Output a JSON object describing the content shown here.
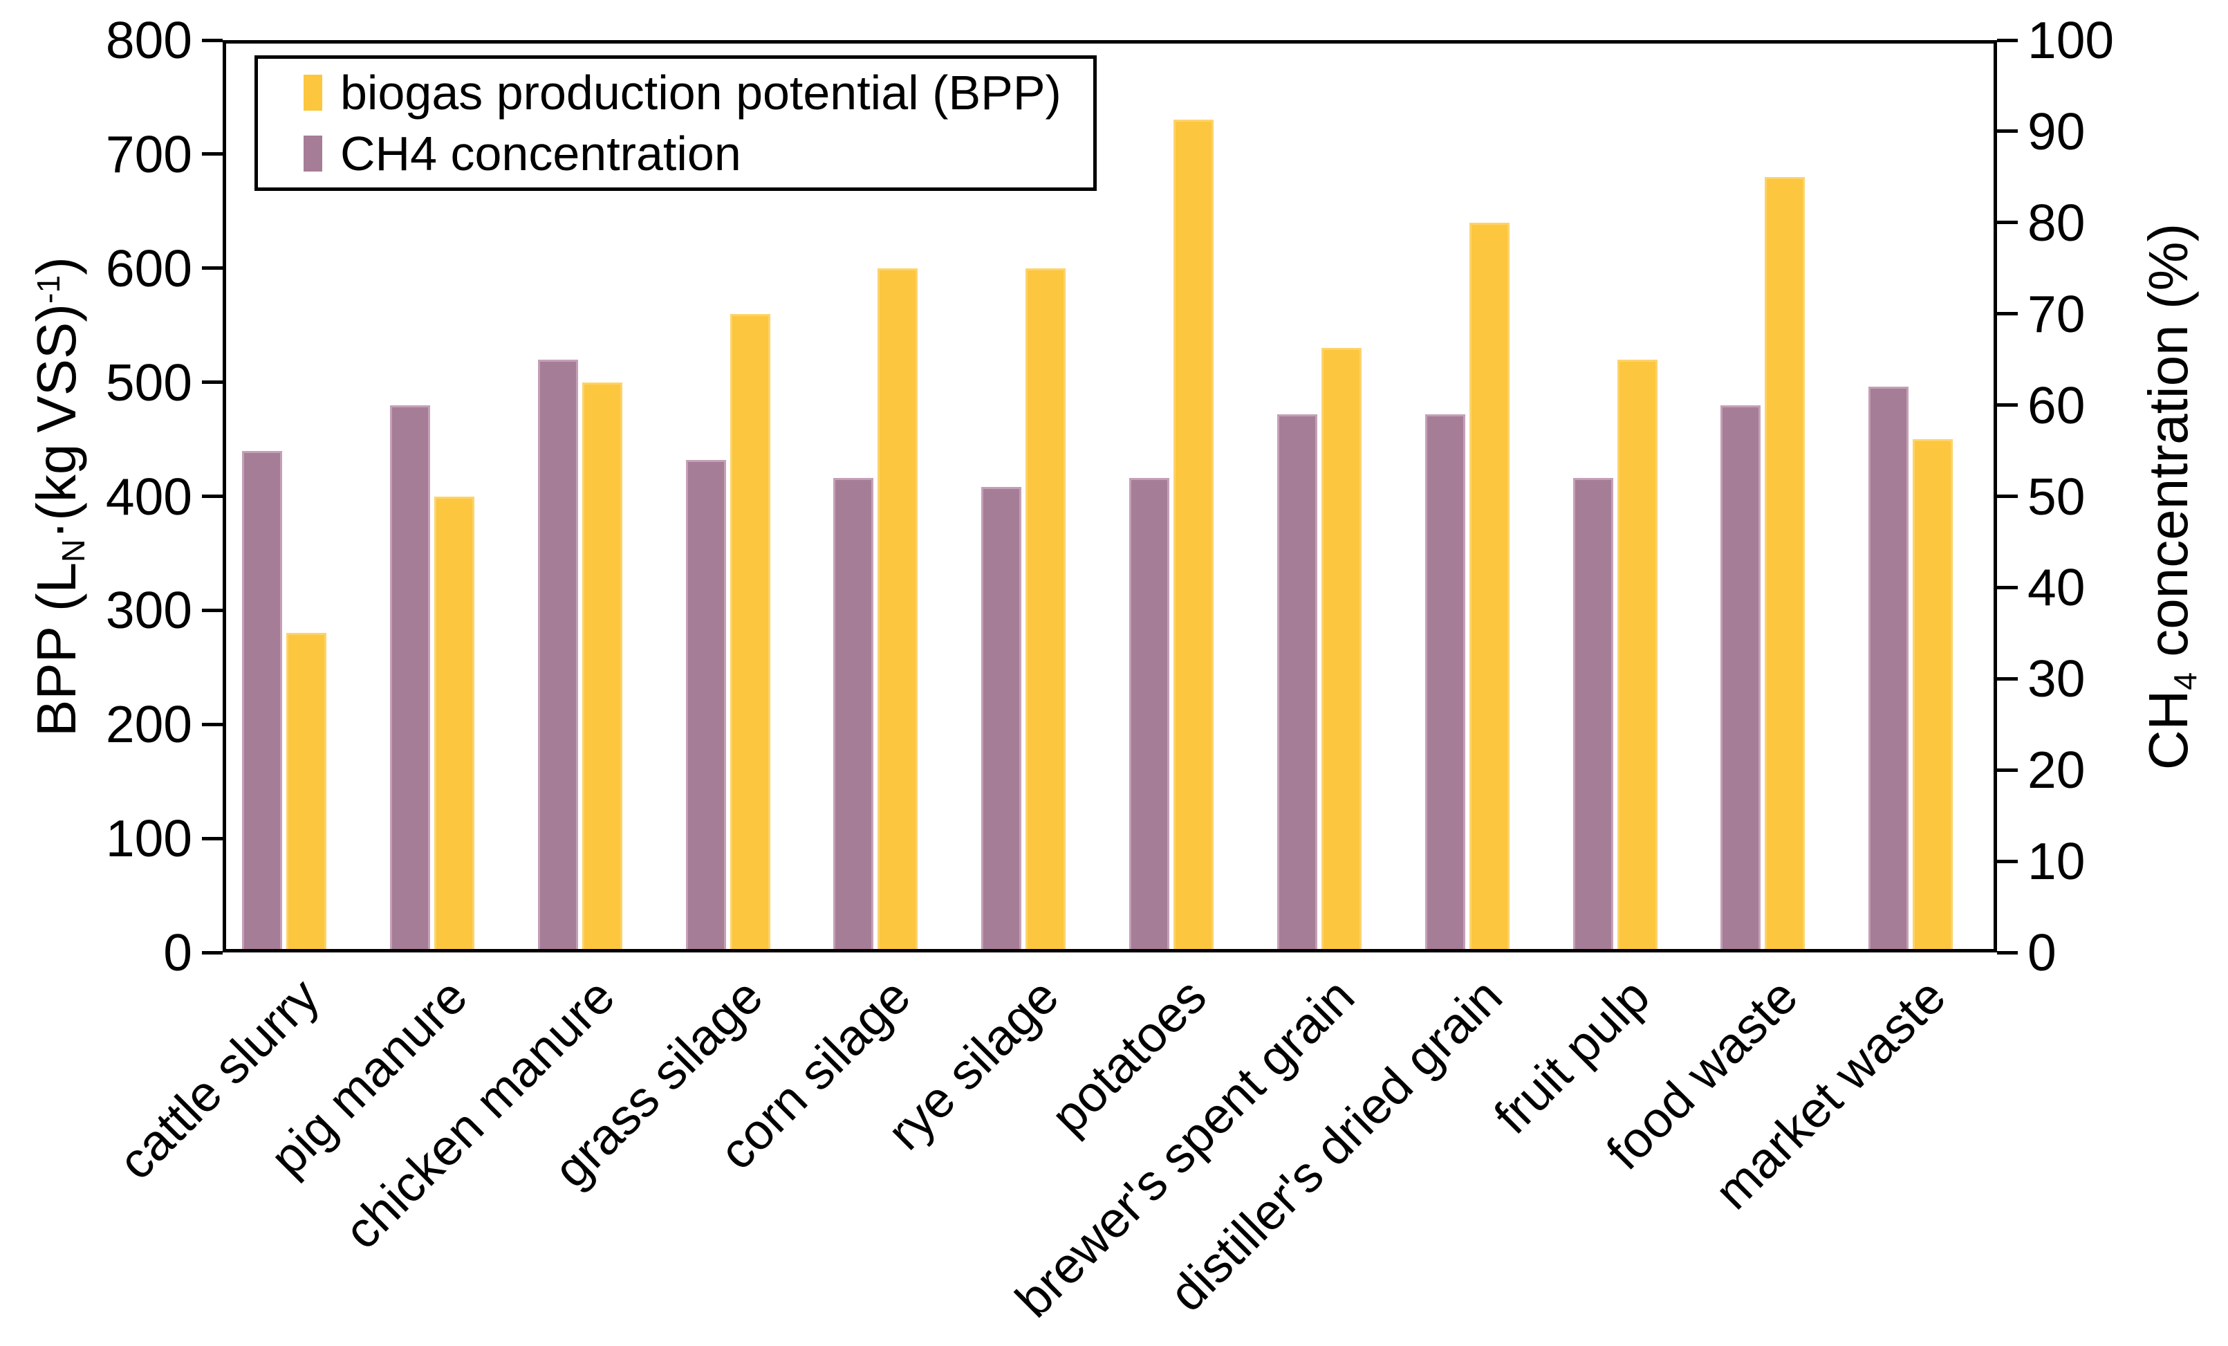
{
  "chart_data": {
    "type": "bar",
    "title": "",
    "grid": false,
    "legend_position": "top-left-inside",
    "categories": [
      "cattle slurry",
      "pig manure",
      "chicken manure",
      "grass silage",
      "corn silage",
      "rye silage",
      "potatoes",
      "brewer's spent grain",
      "distiller's dried grain",
      "fruit pulp",
      "food waste",
      "market waste"
    ],
    "series": [
      {
        "name": "biogas production potential (BPP)",
        "axis": "left",
        "color": "#fcc63e",
        "values": [
          280,
          400,
          500,
          560,
          600,
          600,
          730,
          530,
          640,
          520,
          680,
          450
        ]
      },
      {
        "name": "CH4 concentration",
        "axis": "right",
        "color": "#a67d96",
        "values": [
          55,
          60,
          65,
          54,
          52,
          51,
          52,
          59,
          59,
          52,
          60,
          62
        ]
      }
    ],
    "bar_order_in_group": [
      "CH4 concentration",
      "biogas production potential (BPP)"
    ],
    "left_axis": {
      "min": 0,
      "max": 800,
      "tick_step": 100,
      "tick_labels": [
        0,
        100,
        200,
        300,
        400,
        500,
        600,
        700,
        800
      ],
      "title_parts": [
        {
          "t": "BPP (L"
        },
        {
          "t": "N",
          "style": "sub"
        },
        {
          "t": "·(kg VSS)"
        },
        {
          "t": "-1",
          "style": "sup"
        },
        {
          "t": ")"
        }
      ]
    },
    "right_axis": {
      "min": 0,
      "max": 100,
      "tick_step": 10,
      "tick_labels": [
        0,
        10,
        20,
        30,
        40,
        50,
        60,
        70,
        80,
        90,
        100
      ],
      "title_parts": [
        {
          "t": "CH"
        },
        {
          "t": "4",
          "style": "sub"
        },
        {
          "t": " concentration (%)"
        }
      ]
    },
    "legend": {
      "items": [
        {
          "label": "biogas production potential (BPP)",
          "color": "#fcc63e"
        },
        {
          "label": "CH4 concentration",
          "color": "#a67d96"
        }
      ]
    }
  },
  "colors": {
    "bpp_fill": "#fcc63e",
    "bpp_edge": "#fdd36a",
    "ch4_fill": "#a67d96",
    "ch4_edge": "#c4a0b6",
    "axis": "#000000",
    "background": "#ffffff"
  }
}
